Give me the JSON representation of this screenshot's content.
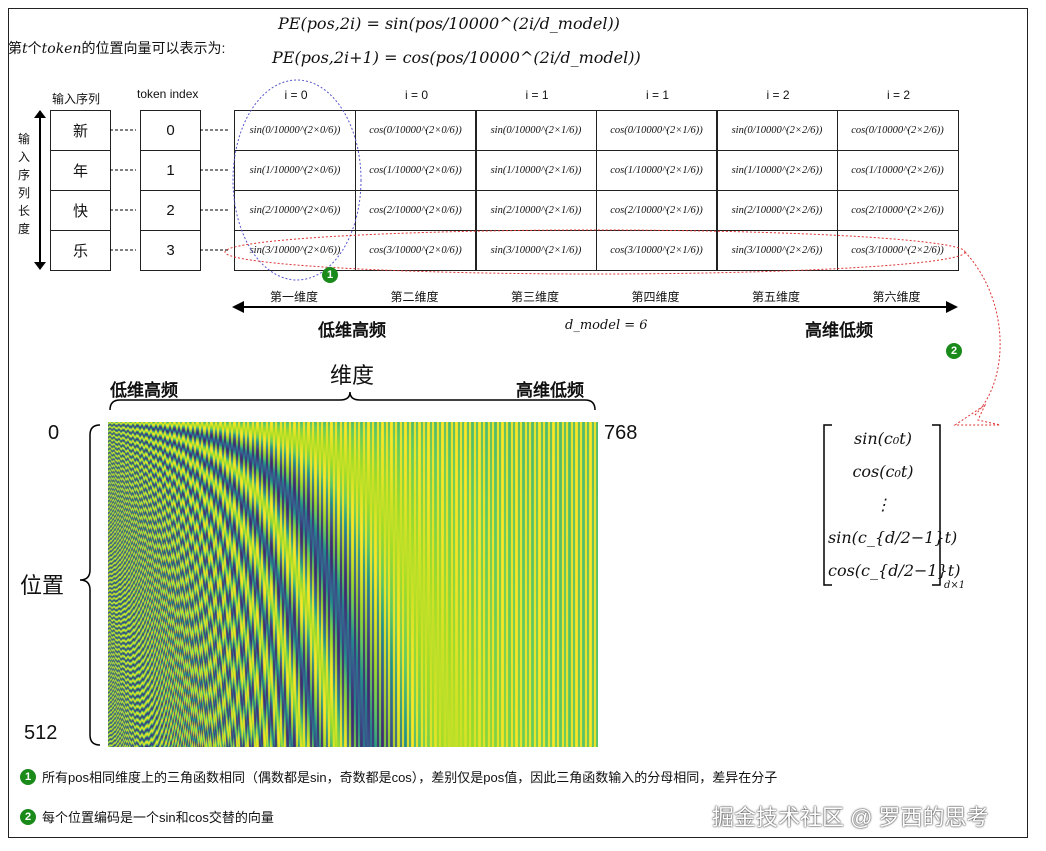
{
  "intro": {
    "prefix": "第",
    "t": "t",
    "mid": "个",
    "token": "token",
    "suffix": "的位置向量可以表示为:",
    "formula_sin": "PE(pos,2i) = sin(pos/10000^(2i/d_model))",
    "formula_cos": "PE(pos,2i+1) = cos(pos/10000^(2i/d_model))"
  },
  "headers": {
    "input_seq": "输入序列",
    "token_index": "token index",
    "seq_length": "输入序列长度",
    "i_labels": [
      "i = 0",
      "i = 0",
      "i = 1",
      "i = 1",
      "i = 2",
      "i = 2"
    ]
  },
  "tokens": [
    "新",
    "年",
    "快",
    "乐"
  ],
  "indices": [
    "0",
    "1",
    "2",
    "3"
  ],
  "table": [
    [
      "sin(0/10000^(2×0/6))",
      "cos(0/10000^(2×0/6))",
      "sin(0/10000^(2×1/6))",
      "cos(0/10000^(2×1/6))",
      "sin(0/10000^(2×2/6))",
      "cos(0/10000^(2×2/6))"
    ],
    [
      "sin(1/10000^(2×0/6))",
      "cos(1/10000^(2×0/6))",
      "sin(1/10000^(2×1/6))",
      "cos(1/10000^(2×1/6))",
      "sin(1/10000^(2×2/6))",
      "cos(1/10000^(2×2/6))"
    ],
    [
      "sin(2/10000^(2×0/6))",
      "cos(2/10000^(2×0/6))",
      "sin(2/10000^(2×1/6))",
      "cos(2/10000^(2×1/6))",
      "sin(2/10000^(2×2/6))",
      "cos(2/10000^(2×2/6))"
    ],
    [
      "sin(3/10000^(2×0/6))",
      "cos(3/10000^(2×0/6))",
      "sin(3/10000^(2×1/6))",
      "cos(3/10000^(2×1/6))",
      "sin(3/10000^(2×2/6))",
      "cos(3/10000^(2×2/6))"
    ]
  ],
  "dims": [
    "第一维度",
    "第二维度",
    "第三维度",
    "第四维度",
    "第五维度",
    "第六维度"
  ],
  "axis": {
    "low": "低维高频",
    "high": "高维低频",
    "dmodel": "d_model = 6"
  },
  "heatmap": {
    "title": "维度",
    "low": "低维高频",
    "high": "高维低频",
    "y_label": "位置",
    "y_start": "0",
    "y_end": "512",
    "x_end": "768",
    "positions": 512,
    "dims": 768
  },
  "vector": {
    "rows": [
      "sin(c₀t)",
      "cos(c₀t)",
      "⋮",
      "sin(c_{d/2−1}t)",
      "cos(c_{d/2−1}t)"
    ],
    "size": "d×1"
  },
  "badges": [
    "1",
    "2"
  ],
  "notes": [
    "所有pos相同维度上的三角函数相同（偶数都是sin，奇数都是cos），差别仅是pos值，因此三角函数输入的分母相同，差异在分子",
    "每个位置编码是一个sin和cos交替的向量"
  ],
  "watermark": "掘金技术社区 @ 罗西的思考",
  "colors": {
    "badge": "#1a8a1a",
    "blue_ellipse": "#5555cc",
    "red_ellipse": "#dd3333"
  }
}
